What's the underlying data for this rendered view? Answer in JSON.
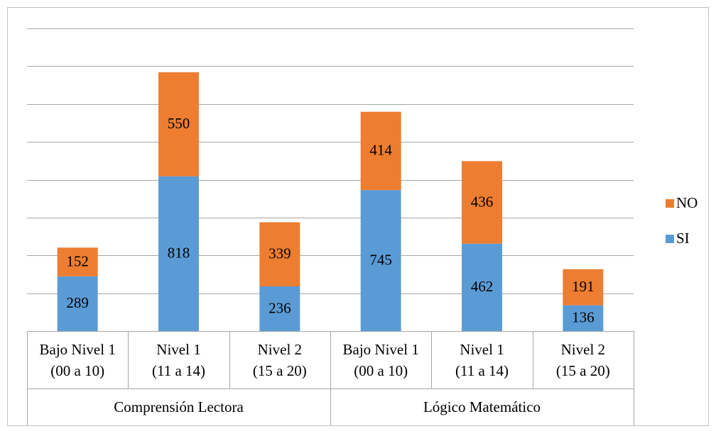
{
  "chart_data": {
    "type": "bar",
    "stacked": true,
    "grid": true,
    "legend_position": "right",
    "ylim": [
      0,
      1600
    ],
    "groups": [
      {
        "label": "Comprensión Lectora",
        "categories": [
          {
            "line1": "Bajo Nivel 1",
            "line2": "(00 a 10)"
          },
          {
            "line1": "Nivel 1",
            "line2": "(11 a 14)"
          },
          {
            "line1": "Nivel 2",
            "line2": "(15 a 20)"
          }
        ]
      },
      {
        "label": "Lógico Matemático",
        "categories": [
          {
            "line1": "Bajo Nivel 1",
            "line2": "(00 a 10)"
          },
          {
            "line1": "Nivel 1",
            "line2": "(11 a 14)"
          },
          {
            "line1": "Nivel 2",
            "line2": "(15 a 20)"
          }
        ]
      }
    ],
    "series": [
      {
        "name": "SI",
        "color": "#5B9BD5",
        "values": [
          289,
          818,
          236,
          745,
          462,
          136
        ]
      },
      {
        "name": "NO",
        "color": "#ED7D31",
        "values": [
          152,
          550,
          339,
          414,
          436,
          191
        ]
      }
    ],
    "legend_order": [
      "NO",
      "SI"
    ]
  }
}
